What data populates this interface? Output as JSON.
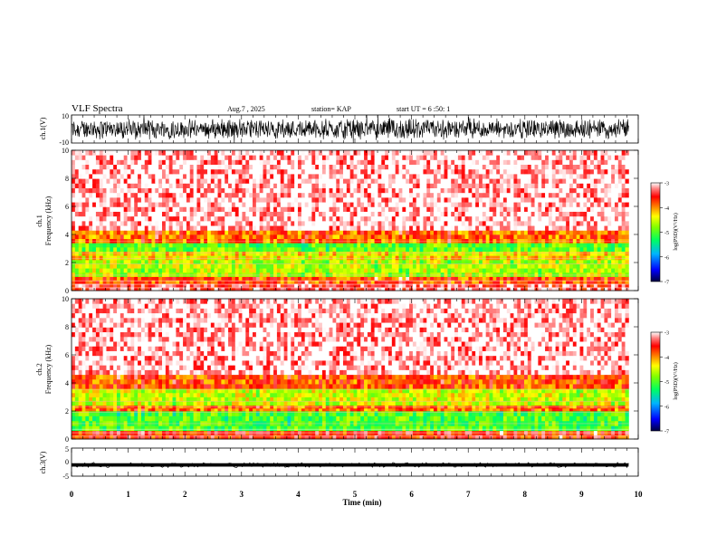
{
  "header": {
    "title": "VLF Spectra",
    "date": "Aug.7 , 2025",
    "station": "station= KAP",
    "start": "start UT = 6 :50: 1"
  },
  "chart_data": [
    {
      "type": "line",
      "panel": "ch1-waveform",
      "ylabel": "ch.1(V)",
      "ylim": [
        -10,
        10
      ],
      "yticks": [
        "10",
        "-10"
      ],
      "xlim": [
        0,
        10
      ],
      "data_extent_min": 9.83,
      "description_signal": "broadband noise roughly between -10 and 10 V"
    },
    {
      "type": "heatmap",
      "panel": "ch1-spectrogram",
      "ylabel": "ch.1\nFrequency (kHz)",
      "ylabel_line1": "ch.1",
      "ylabel_line2": "Frequency (kHz)",
      "ylim": [
        0,
        10
      ],
      "yticks": [
        "0",
        "2",
        "4",
        "6",
        "8",
        "10"
      ],
      "xlim": [
        0,
        10
      ],
      "bands": [
        {
          "from": 0,
          "to": 0.5,
          "level": -3.4
        },
        {
          "from": 0.5,
          "to": 1.0,
          "level": -3.8
        },
        {
          "from": 1.0,
          "to": 2.2,
          "level": -4.6
        },
        {
          "from": 2.2,
          "to": 2.8,
          "level": -4.3
        },
        {
          "from": 2.8,
          "to": 3.4,
          "level": -4.9
        },
        {
          "from": 3.4,
          "to": 4.3,
          "level": -3.9
        },
        {
          "from": 4.3,
          "to": 10,
          "level": -3.1
        }
      ],
      "colorbar": {
        "label": "log(PSD)(V²/Hz)",
        "ticks": [
          "-3",
          "-4",
          "-5",
          "-6",
          "-7"
        ],
        "range": [
          -7,
          -3
        ]
      }
    },
    {
      "type": "heatmap",
      "panel": "ch2-spectrogram",
      "ylabel_line1": "ch.2",
      "ylabel_line2": "Frequency (kHz)",
      "ylim": [
        0,
        10
      ],
      "yticks": [
        "0",
        "2",
        "4",
        "6",
        "8",
        "10"
      ],
      "xlim": [
        0,
        10
      ],
      "bands": [
        {
          "from": 0,
          "to": 0.6,
          "level": -3.6
        },
        {
          "from": 0.6,
          "to": 2.0,
          "level": -5.0
        },
        {
          "from": 2.0,
          "to": 2.4,
          "level": -3.9
        },
        {
          "from": 2.4,
          "to": 3.6,
          "level": -4.5
        },
        {
          "from": 3.6,
          "to": 4.6,
          "level": -3.8
        },
        {
          "from": 4.6,
          "to": 10,
          "level": -3.1
        }
      ],
      "colorbar": {
        "label": "log(PSD)(V²/Hz)",
        "ticks": [
          "-3",
          "-4",
          "-5",
          "-6",
          "-7"
        ],
        "range": [
          -7,
          -3
        ]
      }
    },
    {
      "type": "line",
      "panel": "ch3-waveform",
      "ylabel": "ch.3(V)",
      "ylim": [
        -5,
        5
      ],
      "yticks": [
        "5",
        "0",
        "-5"
      ],
      "xlim": [
        0,
        10
      ],
      "description_signal": "thin band near -1 V"
    }
  ],
  "xaxis": {
    "label": "Time (min)",
    "ticks": [
      "0",
      "1",
      "2",
      "3",
      "4",
      "5",
      "6",
      "7",
      "8",
      "9",
      "10"
    ]
  },
  "colors": {
    "high": "#ff0000",
    "mid": "#ffff00",
    "low": "#00ff00",
    "lowest": "#0000ff",
    "background": "#ffffff"
  }
}
